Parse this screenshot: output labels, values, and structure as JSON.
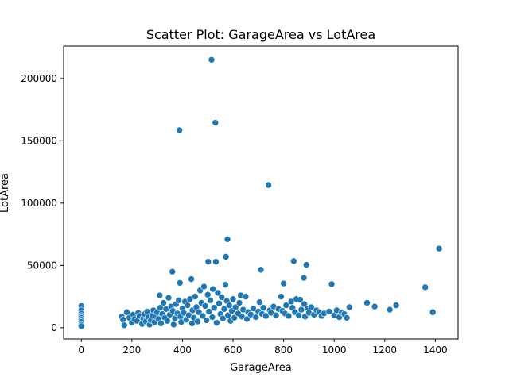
{
  "chart_data": {
    "type": "scatter",
    "title": "Scatter Plot: GarageArea vs LotArea",
    "xlabel": "GarageArea",
    "ylabel": "LotArea",
    "xlim": [
      -70,
      1490
    ],
    "ylim": [
      -9000,
      226000
    ],
    "xticks": [
      0,
      200,
      400,
      600,
      800,
      1000,
      1200,
      1400
    ],
    "xtick_labels": [
      "0",
      "200",
      "400",
      "600",
      "800",
      "1000",
      "1200",
      "1400"
    ],
    "yticks": [
      0,
      50000,
      100000,
      150000,
      200000
    ],
    "ytick_labels": [
      "0",
      "50000",
      "100000",
      "150000",
      "200000"
    ],
    "grid": false,
    "marker_color": "#1f77b4",
    "marker_edge_color": "#ffffff",
    "points": [
      [
        0,
        17500
      ],
      [
        0,
        14000
      ],
      [
        0,
        11500
      ],
      [
        0,
        9600
      ],
      [
        0,
        8000
      ],
      [
        0,
        6500
      ],
      [
        0,
        4800
      ],
      [
        0,
        2500
      ],
      [
        0,
        1300
      ],
      [
        160,
        9000
      ],
      [
        165,
        6500
      ],
      [
        170,
        2000
      ],
      [
        180,
        12500
      ],
      [
        190,
        8000
      ],
      [
        200,
        4000
      ],
      [
        205,
        10500
      ],
      [
        210,
        7000
      ],
      [
        220,
        5500
      ],
      [
        225,
        12000
      ],
      [
        230,
        9500
      ],
      [
        240,
        3000
      ],
      [
        245,
        7500
      ],
      [
        250,
        11000
      ],
      [
        255,
        5000
      ],
      [
        260,
        13000
      ],
      [
        265,
        8500
      ],
      [
        270,
        2500
      ],
      [
        275,
        6000
      ],
      [
        280,
        10000
      ],
      [
        285,
        14000
      ],
      [
        290,
        4500
      ],
      [
        295,
        9000
      ],
      [
        300,
        12500
      ],
      [
        305,
        7000
      ],
      [
        310,
        26000
      ],
      [
        312,
        16000
      ],
      [
        315,
        3500
      ],
      [
        320,
        11000
      ],
      [
        325,
        20000
      ],
      [
        330,
        8000
      ],
      [
        335,
        15000
      ],
      [
        340,
        5500
      ],
      [
        345,
        24000
      ],
      [
        350,
        10500
      ],
      [
        355,
        17000
      ],
      [
        360,
        45000
      ],
      [
        362,
        13500
      ],
      [
        365,
        2500
      ],
      [
        370,
        7500
      ],
      [
        375,
        19000
      ],
      [
        380,
        11500
      ],
      [
        385,
        22000
      ],
      [
        388,
        158500
      ],
      [
        390,
        36000
      ],
      [
        392,
        9000
      ],
      [
        395,
        4500
      ],
      [
        400,
        15500
      ],
      [
        405,
        12000
      ],
      [
        410,
        21000
      ],
      [
        415,
        6500
      ],
      [
        420,
        18000
      ],
      [
        425,
        10000
      ],
      [
        430,
        23000
      ],
      [
        435,
        39000
      ],
      [
        438,
        3500
      ],
      [
        440,
        14000
      ],
      [
        445,
        8000
      ],
      [
        450,
        25000
      ],
      [
        455,
        16500
      ],
      [
        460,
        5000
      ],
      [
        465,
        12500
      ],
      [
        470,
        30000
      ],
      [
        475,
        20000
      ],
      [
        480,
        9500
      ],
      [
        485,
        33000
      ],
      [
        490,
        17500
      ],
      [
        495,
        6000
      ],
      [
        500,
        26500
      ],
      [
        502,
        53000
      ],
      [
        505,
        13000
      ],
      [
        510,
        22000
      ],
      [
        515,
        215000
      ],
      [
        518,
        8500
      ],
      [
        520,
        31000
      ],
      [
        525,
        16000
      ],
      [
        530,
        164500
      ],
      [
        532,
        53000
      ],
      [
        535,
        4000
      ],
      [
        540,
        28000
      ],
      [
        545,
        19500
      ],
      [
        550,
        11000
      ],
      [
        555,
        24500
      ],
      [
        560,
        7500
      ],
      [
        565,
        15000
      ],
      [
        570,
        34500
      ],
      [
        572,
        57000
      ],
      [
        575,
        21500
      ],
      [
        578,
        71000
      ],
      [
        580,
        10000
      ],
      [
        585,
        18000
      ],
      [
        590,
        5500
      ],
      [
        595,
        13500
      ],
      [
        600,
        23000
      ],
      [
        605,
        8000
      ],
      [
        610,
        16500
      ],
      [
        620,
        11500
      ],
      [
        625,
        20000
      ],
      [
        630,
        26000
      ],
      [
        635,
        9000
      ],
      [
        640,
        14500
      ],
      [
        650,
        25000
      ],
      [
        655,
        7000
      ],
      [
        660,
        12500
      ],
      [
        670,
        10500
      ],
      [
        680,
        15500
      ],
      [
        690,
        8500
      ],
      [
        700,
        13000
      ],
      [
        705,
        20500
      ],
      [
        710,
        46500
      ],
      [
        715,
        11000
      ],
      [
        720,
        16000
      ],
      [
        730,
        9500
      ],
      [
        740,
        114500
      ],
      [
        745,
        14000
      ],
      [
        750,
        12000
      ],
      [
        760,
        17000
      ],
      [
        770,
        10000
      ],
      [
        780,
        15000
      ],
      [
        790,
        25000
      ],
      [
        795,
        13500
      ],
      [
        800,
        35500
      ],
      [
        805,
        11500
      ],
      [
        810,
        18000
      ],
      [
        820,
        9500
      ],
      [
        830,
        21000
      ],
      [
        835,
        16000
      ],
      [
        840,
        53500
      ],
      [
        845,
        12500
      ],
      [
        850,
        23000
      ],
      [
        860,
        10000
      ],
      [
        865,
        22500
      ],
      [
        870,
        14500
      ],
      [
        880,
        40000
      ],
      [
        882,
        19000
      ],
      [
        885,
        9000
      ],
      [
        890,
        50500
      ],
      [
        895,
        15500
      ],
      [
        900,
        12000
      ],
      [
        910,
        16500
      ],
      [
        920,
        10500
      ],
      [
        930,
        14000
      ],
      [
        940,
        12500
      ],
      [
        950,
        9500
      ],
      [
        960,
        11500
      ],
      [
        980,
        13000
      ],
      [
        990,
        35000
      ],
      [
        1000,
        10000
      ],
      [
        1010,
        14000
      ],
      [
        1020,
        8500
      ],
      [
        1030,
        12000
      ],
      [
        1040,
        11000
      ],
      [
        1050,
        8000
      ],
      [
        1060,
        16500
      ],
      [
        1130,
        20000
      ],
      [
        1160,
        17000
      ],
      [
        1220,
        14500
      ],
      [
        1245,
        18000
      ],
      [
        1360,
        32500
      ],
      [
        1390,
        12500
      ],
      [
        1415,
        63500
      ]
    ]
  }
}
